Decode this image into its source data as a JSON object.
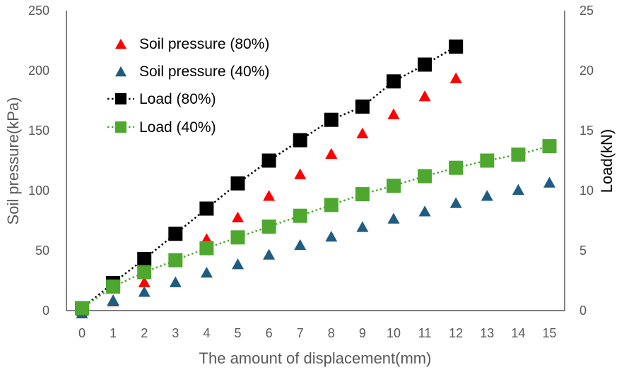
{
  "chart_data": {
    "type": "scatter",
    "xlabel": "The amount of displacement(mm)",
    "ylabel": "Soil pressure(kPa)",
    "y2label": "Load(kN)",
    "xlim": [
      0,
      15
    ],
    "ylim": [
      0,
      250
    ],
    "y2lim": [
      0,
      25
    ],
    "xticks": [
      "0",
      "1",
      "2",
      "3",
      "4",
      "5",
      "6",
      "7",
      "8",
      "9",
      "10",
      "11",
      "12",
      "13",
      "14",
      "15"
    ],
    "yticks": [
      "0",
      "50",
      "100",
      "150",
      "200",
      "250"
    ],
    "y2ticks": [
      "0",
      "5",
      "10",
      "15",
      "20",
      "25"
    ],
    "grid": false,
    "legend_position": "top-left",
    "series": [
      {
        "name": "Soil pressure (80%)",
        "axis": "left",
        "marker": "triangle",
        "color": "#ff0000",
        "line": false,
        "x": [
          0,
          1,
          2,
          3,
          4,
          5,
          6,
          7,
          8,
          9,
          10,
          11,
          12
        ],
        "values": [
          0,
          8,
          24,
          43,
          60,
          78,
          96,
          114,
          131,
          148,
          164,
          179,
          194
        ]
      },
      {
        "name": "Soil pressure (40%)",
        "axis": "left",
        "marker": "triangle",
        "color": "#1f5c80",
        "line": false,
        "x": [
          0,
          1,
          2,
          3,
          4,
          5,
          6,
          7,
          8,
          9,
          10,
          11,
          12,
          13,
          14,
          15
        ],
        "values": [
          -2,
          9,
          16,
          24,
          32,
          39,
          47,
          55,
          62,
          70,
          77,
          83,
          90,
          96,
          101,
          107
        ]
      },
      {
        "name": "Load (80%)",
        "axis": "right",
        "marker": "square",
        "color": "#000000",
        "line": "dotted",
        "x": [
          0,
          1,
          2,
          3,
          4,
          5,
          6,
          7,
          8,
          9,
          10,
          11,
          12
        ],
        "values": [
          0.2,
          2.3,
          4.3,
          6.4,
          8.5,
          10.6,
          12.5,
          14.2,
          15.9,
          17.0,
          19.1,
          20.5,
          22.0
        ]
      },
      {
        "name": "Load (40%)",
        "axis": "right",
        "marker": "square",
        "color": "#4ea72e",
        "line": "dotted",
        "x": [
          0,
          1,
          2,
          3,
          4,
          5,
          6,
          7,
          8,
          9,
          10,
          11,
          12,
          13,
          14,
          15
        ],
        "values": [
          0.2,
          2.0,
          3.2,
          4.2,
          5.2,
          6.1,
          7.0,
          7.9,
          8.8,
          9.7,
          10.4,
          11.2,
          11.9,
          12.5,
          13.0,
          13.7
        ]
      }
    ]
  }
}
